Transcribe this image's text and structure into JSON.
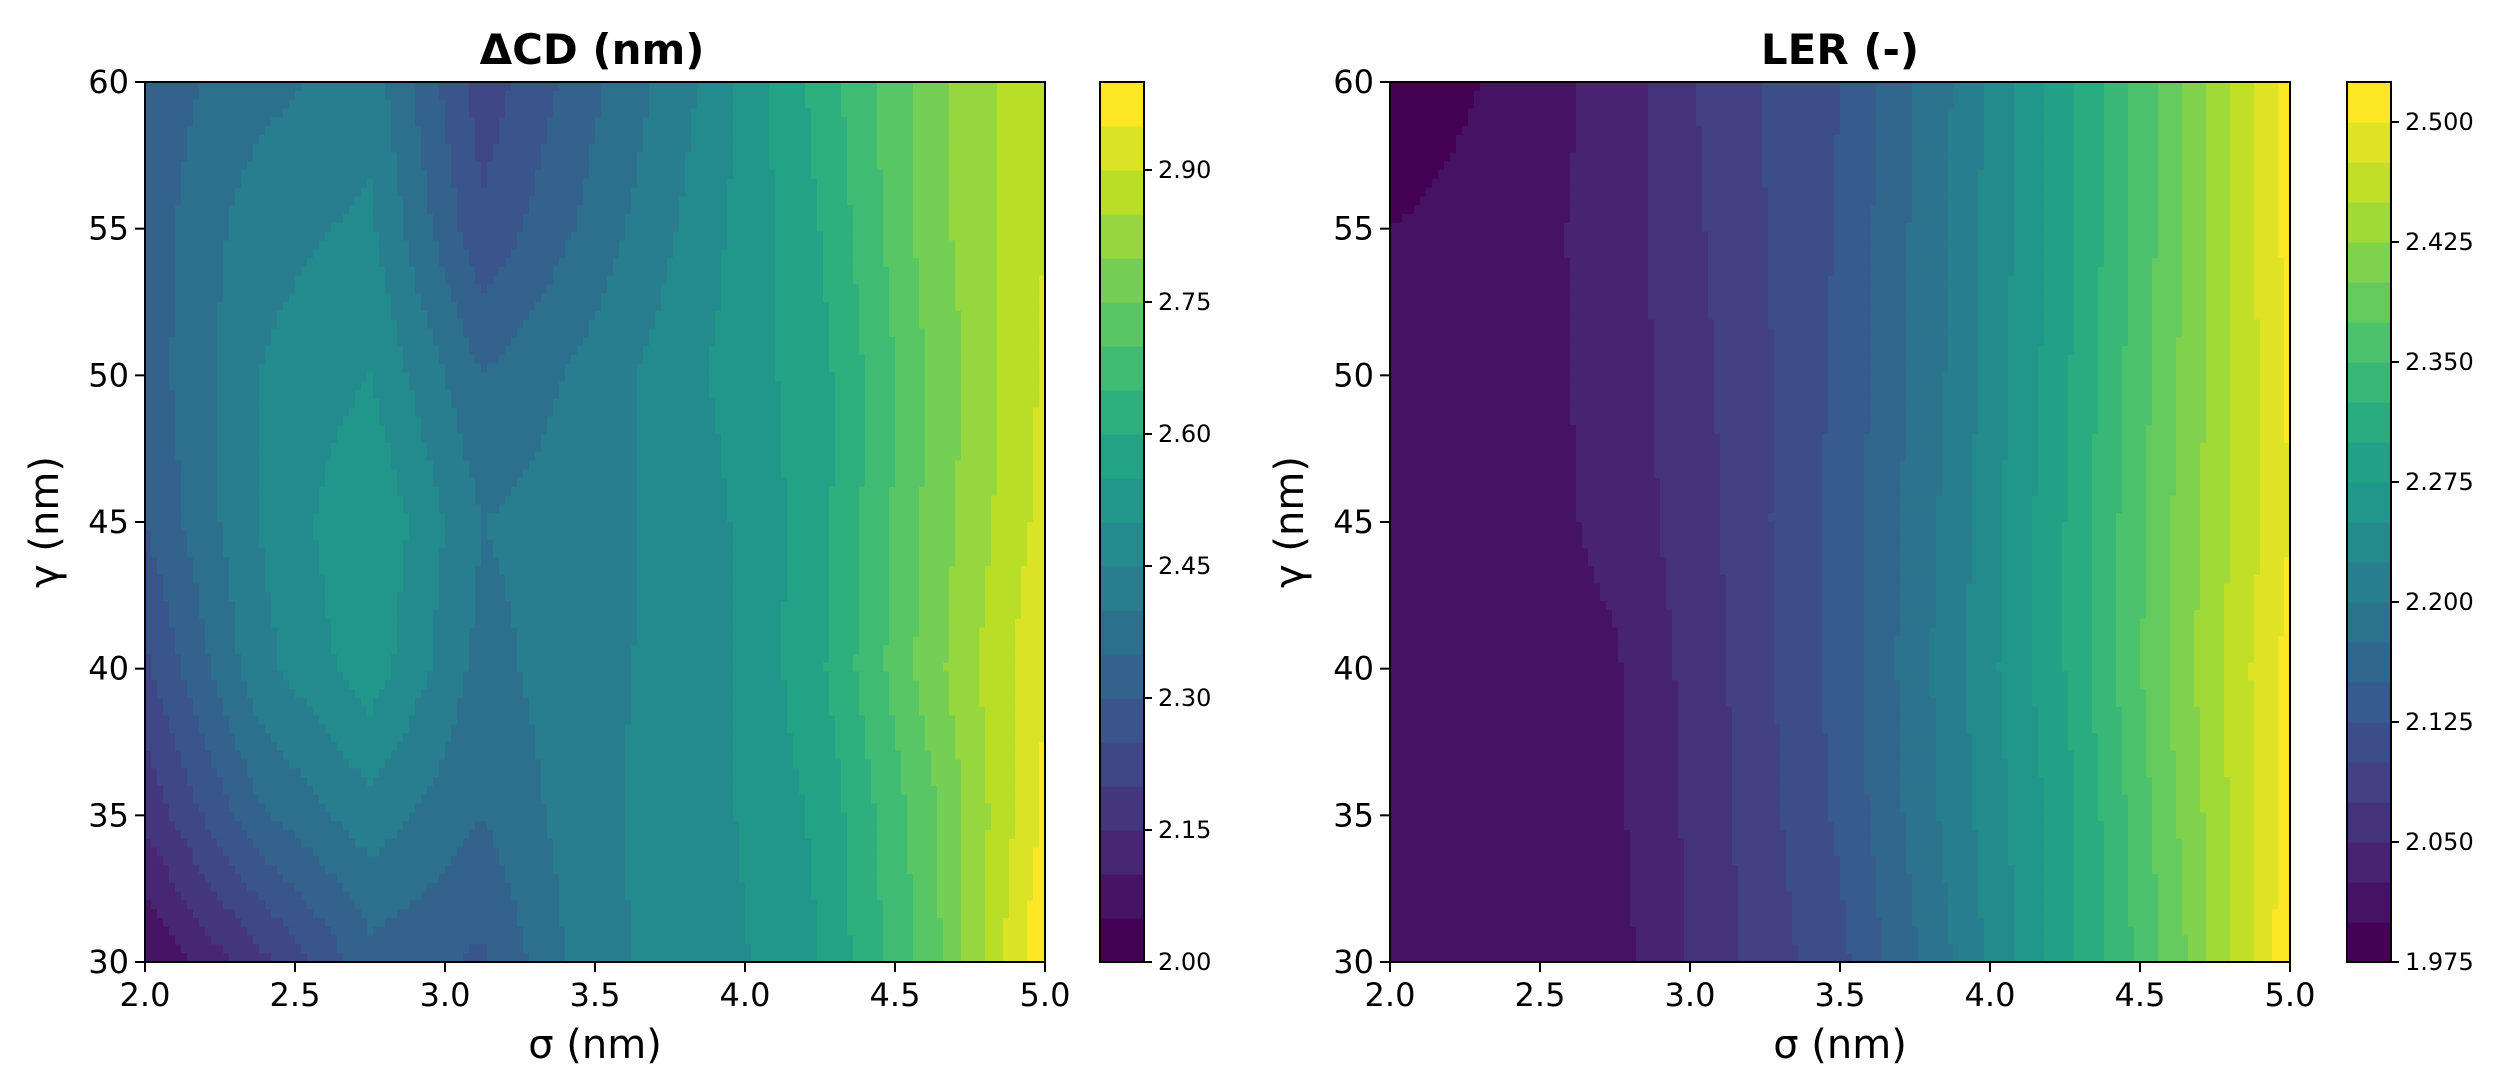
{
  "chart_data": [
    {
      "type": "heatmap",
      "subtype": "filled-contour",
      "title": "ΔCD (nm)",
      "xlabel": "σ (nm)",
      "ylabel": "γ (nm)",
      "xlim": [
        2.0,
        5.0
      ],
      "ylim": [
        30,
        60
      ],
      "xticks": [
        "2.0",
        "2.5",
        "3.0",
        "3.5",
        "4.0",
        "4.5",
        "5.0"
      ],
      "yticks": [
        "30",
        "35",
        "40",
        "45",
        "50",
        "55",
        "60"
      ],
      "colormap": "viridis",
      "grid": false,
      "colorbar": {
        "levels": [
          2.0,
          2.05,
          2.1,
          2.15,
          2.2,
          2.25,
          2.3,
          2.35,
          2.4,
          2.45,
          2.5,
          2.55,
          2.6,
          2.65,
          2.7,
          2.75,
          2.8,
          2.85,
          2.9,
          2.95,
          3.0
        ],
        "tick_labels": [
          "2.00",
          "2.15",
          "2.30",
          "2.45",
          "2.60",
          "2.75",
          "2.90"
        ]
      },
      "x": [
        2.0,
        2.375,
        2.75,
        3.125,
        3.5,
        3.875,
        4.25,
        4.625,
        5.0
      ],
      "y": [
        30,
        35,
        40,
        45,
        50,
        55,
        60
      ],
      "z": [
        [
          2.05,
          2.18,
          2.33,
          2.29,
          2.44,
          2.47,
          2.55,
          2.73,
          3.0
        ],
        [
          2.16,
          2.34,
          2.43,
          2.35,
          2.44,
          2.48,
          2.56,
          2.74,
          2.96
        ],
        [
          2.24,
          2.43,
          2.53,
          2.38,
          2.44,
          2.47,
          2.59,
          2.78,
          2.95
        ],
        [
          2.3,
          2.45,
          2.55,
          2.4,
          2.43,
          2.48,
          2.58,
          2.77,
          2.92
        ],
        [
          2.32,
          2.45,
          2.5,
          2.35,
          2.42,
          2.5,
          2.58,
          2.76,
          2.91
        ],
        [
          2.32,
          2.43,
          2.46,
          2.26,
          2.37,
          2.48,
          2.6,
          2.78,
          2.9
        ],
        [
          2.32,
          2.38,
          2.43,
          2.22,
          2.34,
          2.46,
          2.62,
          2.78,
          2.9
        ]
      ]
    },
    {
      "type": "heatmap",
      "subtype": "filled-contour",
      "title": "LER (-)",
      "xlabel": "σ (nm)",
      "ylabel": "γ (nm)",
      "xlim": [
        2.0,
        5.0
      ],
      "ylim": [
        30,
        60
      ],
      "xticks": [
        "2.0",
        "2.5",
        "3.0",
        "3.5",
        "4.0",
        "4.5",
        "5.0"
      ],
      "yticks": [
        "30",
        "35",
        "40",
        "45",
        "50",
        "55",
        "60"
      ],
      "colormap": "viridis",
      "grid": false,
      "colorbar": {
        "levels": [
          1.975,
          2.0,
          2.025,
          2.05,
          2.075,
          2.1,
          2.125,
          2.15,
          2.175,
          2.2,
          2.225,
          2.25,
          2.275,
          2.3,
          2.325,
          2.35,
          2.375,
          2.4,
          2.425,
          2.45,
          2.475,
          2.5,
          2.525
        ],
        "tick_labels": [
          "1.975",
          "2.050",
          "2.125",
          "2.200",
          "2.275",
          "2.350",
          "2.425",
          "2.500"
        ]
      },
      "x": [
        2.0,
        2.375,
        2.75,
        3.125,
        3.5,
        3.875,
        4.25,
        4.625,
        5.0
      ],
      "y": [
        30,
        35,
        40,
        45,
        50,
        55,
        60
      ],
      "z": [
        [
          2.01,
          2.01,
          2.015,
          2.07,
          2.118,
          2.2,
          2.29,
          2.39,
          2.52
        ],
        [
          2.01,
          2.01,
          2.02,
          2.072,
          2.13,
          2.21,
          2.29,
          2.4,
          2.51
        ],
        [
          2.01,
          2.01,
          2.022,
          2.075,
          2.135,
          2.215,
          2.3,
          2.41,
          2.51
        ],
        [
          2.01,
          2.01,
          2.032,
          2.078,
          2.135,
          2.21,
          2.3,
          2.405,
          2.5
        ],
        [
          2.01,
          2.01,
          2.035,
          2.08,
          2.13,
          2.205,
          2.295,
          2.4,
          2.505
        ],
        [
          2.0,
          2.012,
          2.035,
          2.085,
          2.128,
          2.205,
          2.29,
          2.395,
          2.51
        ],
        [
          1.98,
          2.005,
          2.035,
          2.09,
          2.125,
          2.2,
          2.29,
          2.395,
          2.51
        ]
      ]
    }
  ]
}
